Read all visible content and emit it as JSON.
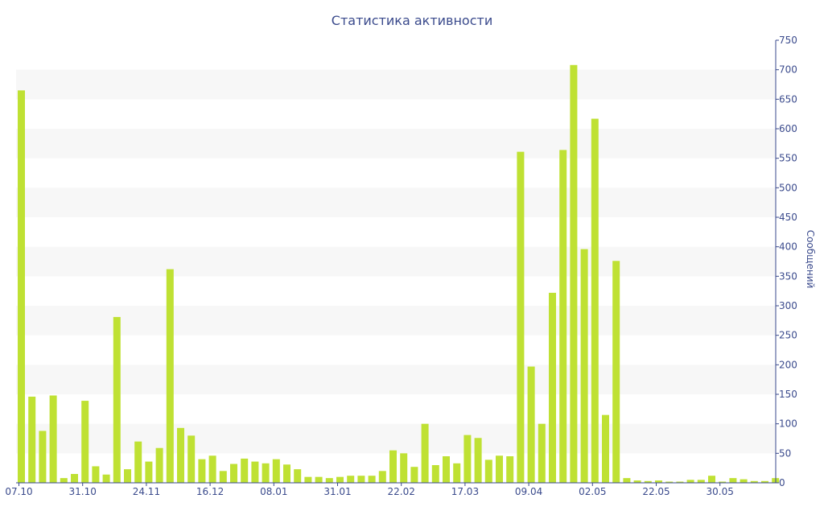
{
  "chart_data": {
    "type": "bar",
    "title": "Статистика активности",
    "ylabel": "Сообщений",
    "xlabel": "",
    "ylim": [
      0,
      750
    ],
    "y_ticks": [
      0,
      50,
      100,
      150,
      200,
      250,
      300,
      350,
      400,
      450,
      500,
      550,
      600,
      650,
      700,
      750
    ],
    "x_tick_labels": [
      {
        "index": 0,
        "label": "07.10"
      },
      {
        "index": 6,
        "label": "31.10"
      },
      {
        "index": 12,
        "label": "24.11"
      },
      {
        "index": 18,
        "label": "16.12"
      },
      {
        "index": 24,
        "label": "08.01"
      },
      {
        "index": 30,
        "label": "31.01"
      },
      {
        "index": 36,
        "label": "22.02"
      },
      {
        "index": 42,
        "label": "17.03"
      },
      {
        "index": 48,
        "label": "09.04"
      },
      {
        "index": 54,
        "label": "02.05"
      },
      {
        "index": 60,
        "label": "22.05"
      },
      {
        "index": 66,
        "label": "30.05"
      }
    ],
    "values": [
      665,
      146,
      88,
      148,
      8,
      15,
      139,
      28,
      14,
      281,
      23,
      70,
      36,
      59,
      362,
      93,
      80,
      40,
      46,
      20,
      32,
      41,
      36,
      33,
      40,
      31,
      23,
      10,
      10,
      8,
      10,
      12,
      12,
      12,
      20,
      55,
      50,
      27,
      100,
      30,
      45,
      33,
      81,
      76,
      39,
      46,
      45,
      561,
      197,
      100,
      322,
      564,
      708,
      396,
      617,
      115,
      376,
      8,
      4,
      3,
      4,
      2,
      2,
      5,
      5,
      12,
      2,
      8,
      6,
      3,
      3,
      8
    ],
    "bar_color": "#bfe133",
    "grid": true,
    "band_color": "#f7f7f7",
    "axis_color": "#3a4a8c",
    "y_axis_position": "right"
  }
}
